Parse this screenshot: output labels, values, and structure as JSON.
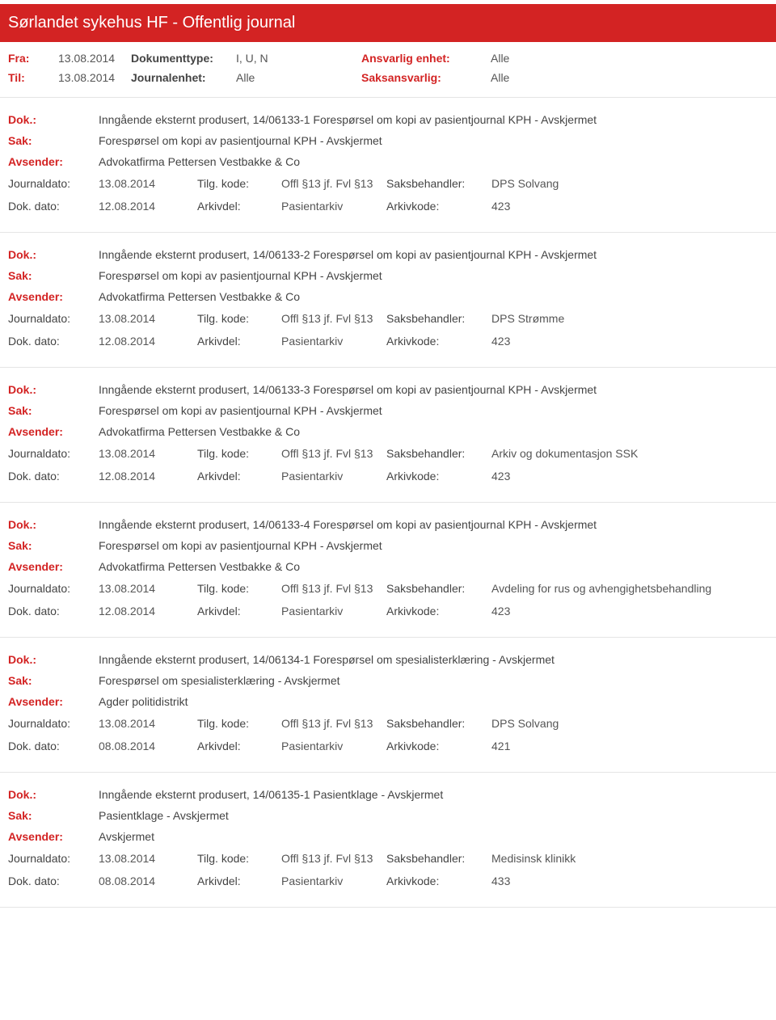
{
  "header": {
    "title": "Sørlandet sykehus HF - Offentlig journal"
  },
  "filters": {
    "fra_label": "Fra:",
    "fra_value": "13.08.2014",
    "til_label": "Til:",
    "til_value": "13.08.2014",
    "dokumenttype_label": "Dokumenttype:",
    "dokumenttype_value": "I, U, N",
    "journalenhet_label": "Journalenhet:",
    "journalenhet_value": "Alle",
    "ansvarlig_label": "Ansvarlig enhet:",
    "ansvarlig_value": "Alle",
    "saksansvarlig_label": "Saksansvarlig:",
    "saksansvarlig_value": "Alle"
  },
  "labels": {
    "dok": "Dok.:",
    "sak": "Sak:",
    "avsender": "Avsender:",
    "journaldato": "Journaldato:",
    "dokdato": "Dok. dato:",
    "tilgkode": "Tilg. kode:",
    "arkivdel": "Arkivdel:",
    "saksbehandler": "Saksbehandler:",
    "arkivkode": "Arkivkode:"
  },
  "entries": [
    {
      "dok": "Inngående eksternt produsert, 14/06133-1 Forespørsel om kopi av pasientjournal KPH - Avskjermet",
      "sak": "Forespørsel om kopi av pasientjournal KPH - Avskjermet",
      "avsender": "Advokatfirma Pettersen Vestbakke & Co",
      "journaldato": "13.08.2014",
      "dokdato": "12.08.2014",
      "tilgkode": "Offl §13 jf. Fvl §13",
      "arkivdel": "Pasientarkiv",
      "saksbehandler": "DPS Solvang",
      "arkivkode": "423"
    },
    {
      "dok": "Inngående eksternt produsert, 14/06133-2 Forespørsel om kopi av pasientjournal KPH - Avskjermet",
      "sak": "Forespørsel om kopi av pasientjournal KPH - Avskjermet",
      "avsender": "Advokatfirma Pettersen Vestbakke & Co",
      "journaldato": "13.08.2014",
      "dokdato": "12.08.2014",
      "tilgkode": "Offl §13 jf. Fvl §13",
      "arkivdel": "Pasientarkiv",
      "saksbehandler": "DPS Strømme",
      "arkivkode": "423"
    },
    {
      "dok": "Inngående eksternt produsert, 14/06133-3 Forespørsel om kopi av pasientjournal KPH - Avskjermet",
      "sak": "Forespørsel om kopi av pasientjournal KPH - Avskjermet",
      "avsender": "Advokatfirma Pettersen Vestbakke & Co",
      "journaldato": "13.08.2014",
      "dokdato": "12.08.2014",
      "tilgkode": "Offl §13 jf. Fvl §13",
      "arkivdel": "Pasientarkiv",
      "saksbehandler": "Arkiv og dokumentasjon SSK",
      "arkivkode": "423"
    },
    {
      "dok": "Inngående eksternt produsert, 14/06133-4 Forespørsel om kopi av pasientjournal KPH - Avskjermet",
      "sak": "Forespørsel om kopi av pasientjournal KPH - Avskjermet",
      "avsender": "Advokatfirma Pettersen Vestbakke & Co",
      "journaldato": "13.08.2014",
      "dokdato": "12.08.2014",
      "tilgkode": "Offl §13 jf. Fvl §13",
      "arkivdel": "Pasientarkiv",
      "saksbehandler": "Avdeling for rus og avhengighetsbehandling",
      "arkivkode": "423"
    },
    {
      "dok": "Inngående eksternt produsert, 14/06134-1 Forespørsel om spesialisterklæring - Avskjermet",
      "sak": "Forespørsel om spesialisterklæring - Avskjermet",
      "avsender": "Agder politidistrikt",
      "journaldato": "13.08.2014",
      "dokdato": "08.08.2014",
      "tilgkode": "Offl §13 jf. Fvl §13",
      "arkivdel": "Pasientarkiv",
      "saksbehandler": "DPS Solvang",
      "arkivkode": "421"
    },
    {
      "dok": "Inngående eksternt produsert, 14/06135-1 Pasientklage - Avskjermet",
      "sak": "Pasientklage - Avskjermet",
      "avsender": "Avskjermet",
      "journaldato": "13.08.2014",
      "dokdato": "08.08.2014",
      "tilgkode": "Offl §13 jf. Fvl §13",
      "arkivdel": "Pasientarkiv",
      "saksbehandler": "Medisinsk klinikk",
      "arkivkode": "433"
    }
  ]
}
